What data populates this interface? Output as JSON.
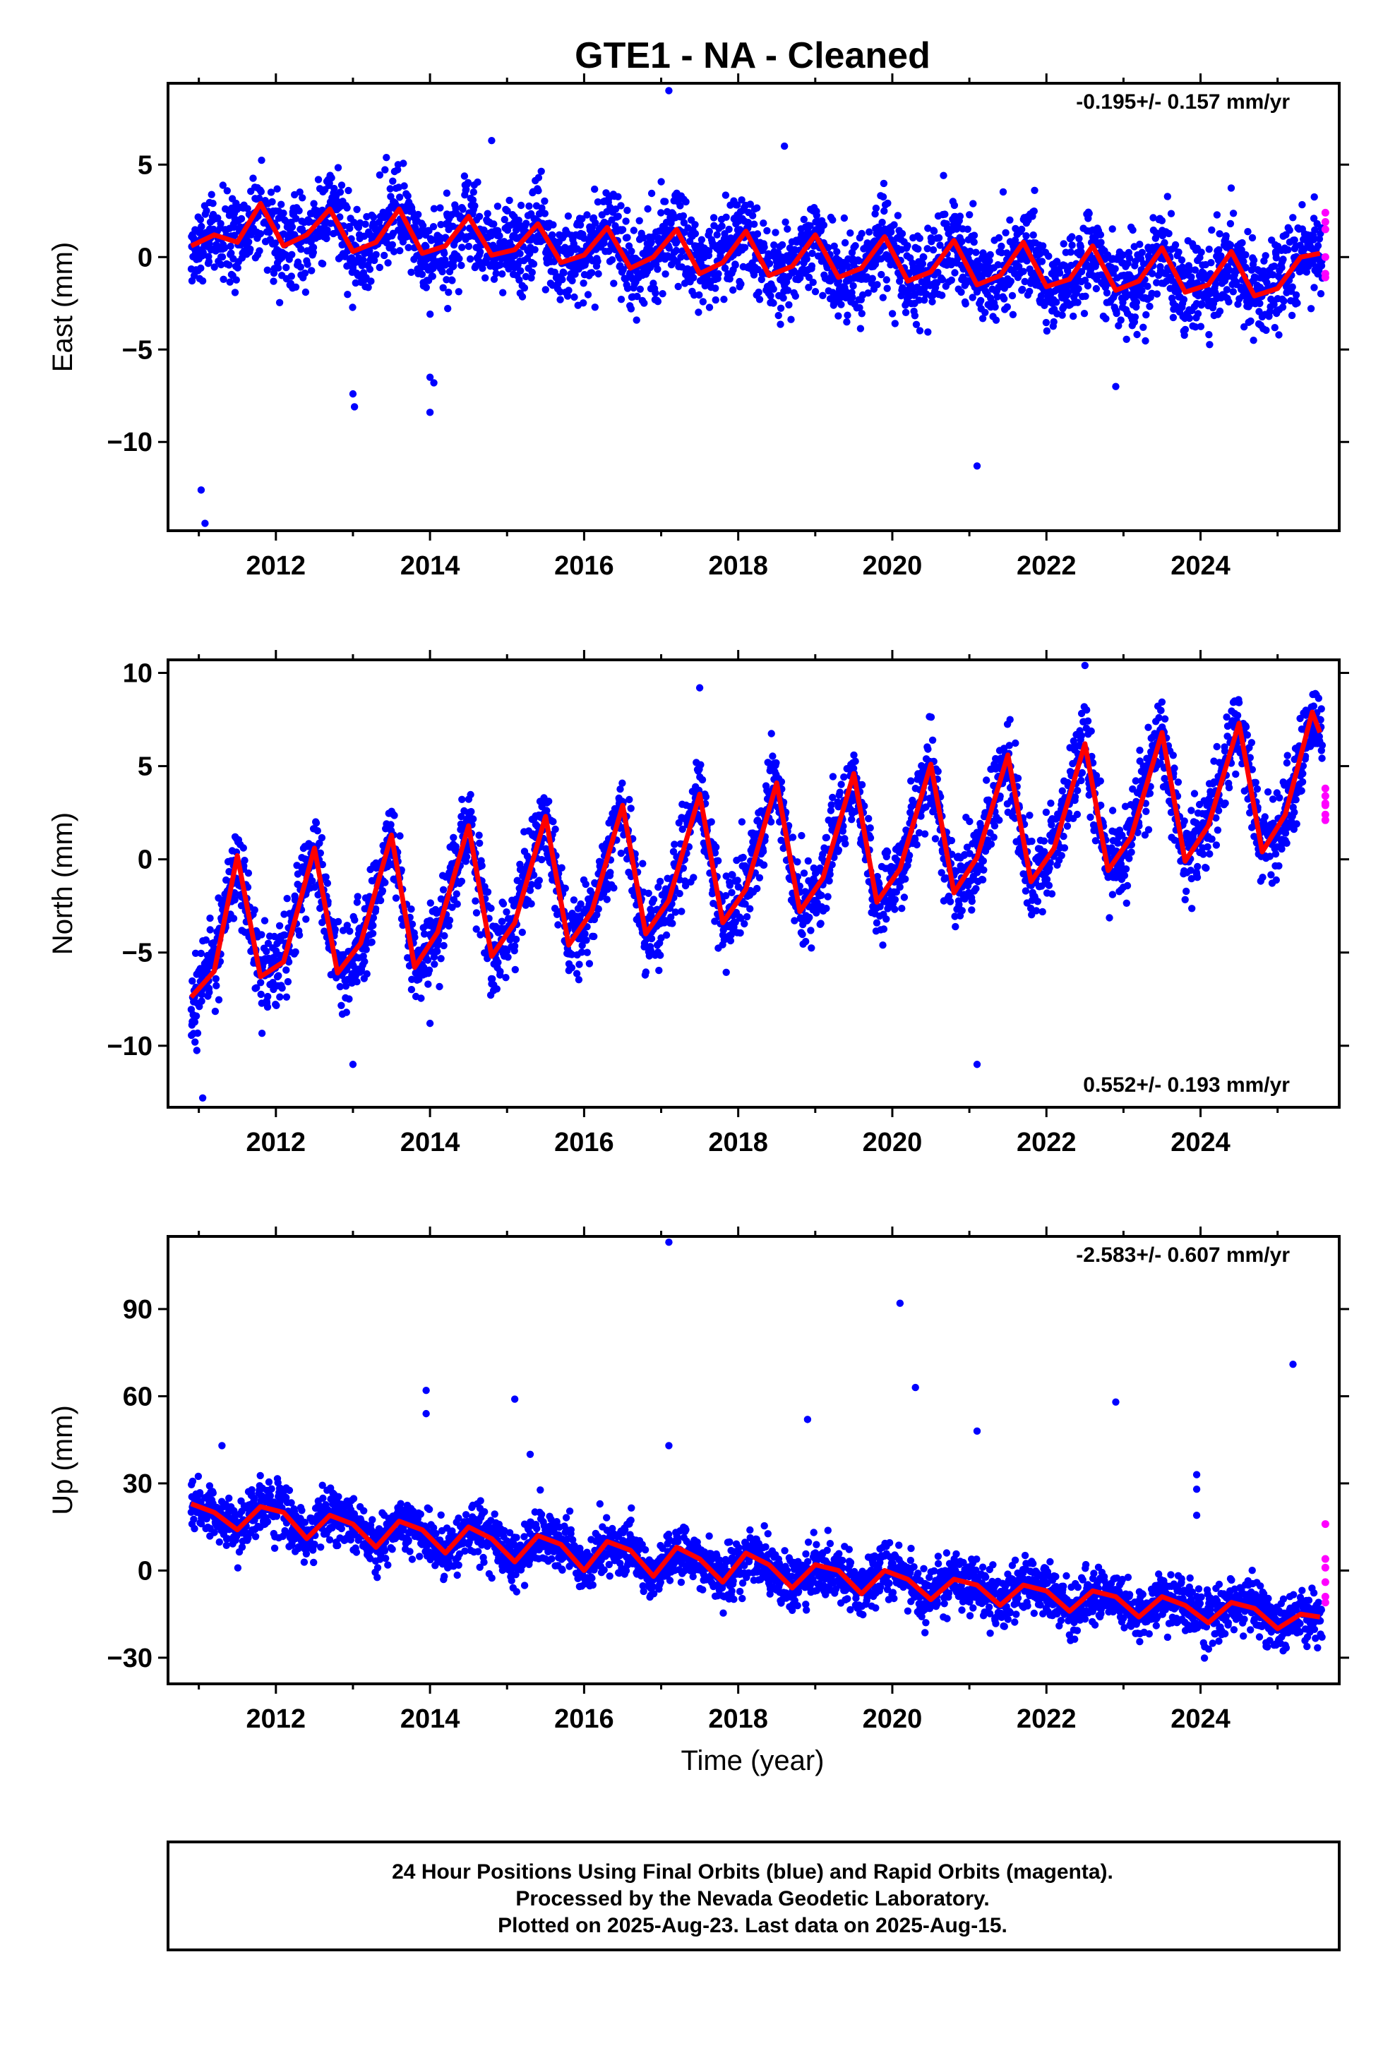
{
  "title": "GTE1  - NA - Cleaned",
  "colors": {
    "final_points": "#0000ff",
    "rapid_points": "#ff00ff",
    "model_line": "#ff0000",
    "frame": "#000000"
  },
  "chart_data": [
    {
      "type": "scatter",
      "panel": "east",
      "ylabel": "East (mm)",
      "xlabel": "",
      "xlim": [
        2010.6,
        2025.8
      ],
      "ylim": [
        -14.8,
        9.4
      ],
      "yticks": [
        5,
        0,
        -5,
        -10
      ],
      "ytick_labels": [
        "5",
        "0",
        "−5",
        "−10"
      ],
      "xticks": [
        2012,
        2014,
        2016,
        2018,
        2020,
        2022,
        2024
      ],
      "xtick_labels": [
        "2012",
        "2014",
        "2016",
        "2018",
        "2020",
        "2022",
        "2024"
      ],
      "rate_label": "-0.195+/- 0.157 mm/yr",
      "rate_position": "top-right",
      "model": {
        "x": [
          2010.9,
          2011.2,
          2011.5,
          2011.8,
          2012.1,
          2012.4,
          2012.7,
          2013.0,
          2013.3,
          2013.6,
          2013.9,
          2014.2,
          2014.5,
          2014.8,
          2015.1,
          2015.4,
          2015.7,
          2016.0,
          2016.3,
          2016.6,
          2016.9,
          2017.2,
          2017.5,
          2017.8,
          2018.1,
          2018.4,
          2018.7,
          2019.0,
          2019.3,
          2019.6,
          2019.9,
          2020.2,
          2020.5,
          2020.8,
          2021.1,
          2021.4,
          2021.7,
          2022.0,
          2022.3,
          2022.6,
          2022.9,
          2023.2,
          2023.5,
          2023.8,
          2024.1,
          2024.4,
          2024.7,
          2025.0,
          2025.3,
          2025.55
        ],
        "y": [
          0.6,
          1.2,
          0.8,
          2.9,
          0.6,
          1.2,
          2.6,
          0.3,
          0.8,
          2.6,
          0.2,
          0.6,
          2.2,
          0.1,
          0.4,
          1.8,
          -0.3,
          0.1,
          1.6,
          -0.6,
          0.0,
          1.5,
          -0.9,
          -0.3,
          1.4,
          -1.0,
          -0.5,
          1.2,
          -1.1,
          -0.6,
          1.1,
          -1.3,
          -0.8,
          0.9,
          -1.5,
          -1.0,
          0.8,
          -1.6,
          -1.2,
          0.6,
          -1.8,
          -1.3,
          0.5,
          -1.9,
          -1.5,
          0.3,
          -2.1,
          -1.7,
          0.0,
          0.2
        ]
      },
      "outliers": {
        "x": [
          2011.03,
          2011.08,
          2013.0,
          2013.02,
          2014.0,
          2014.05,
          2014.0,
          2017.1,
          2021.1,
          2022.9,
          2014.8,
          2018.6
        ],
        "y": [
          -12.6,
          -14.4,
          -7.4,
          -8.1,
          -6.5,
          -6.8,
          -8.4,
          9.0,
          -11.3,
          -7.0,
          6.3,
          6.0
        ]
      },
      "rapid": {
        "x": [
          2025.62,
          2025.62,
          2025.62,
          2025.62,
          2025.62,
          2025.62
        ],
        "y": [
          2.4,
          1.9,
          1.5,
          0.0,
          -0.9,
          -1.1
        ]
      }
    },
    {
      "type": "scatter",
      "panel": "north",
      "ylabel": "North (mm)",
      "xlabel": "",
      "xlim": [
        2010.6,
        2025.8
      ],
      "ylim": [
        -13.3,
        10.7
      ],
      "yticks": [
        10,
        5,
        0,
        -5,
        -10
      ],
      "ytick_labels": [
        "10",
        "5",
        "0",
        "−5",
        "−10"
      ],
      "xticks": [
        2012,
        2014,
        2016,
        2018,
        2020,
        2022,
        2024
      ],
      "xtick_labels": [
        "2012",
        "2014",
        "2016",
        "2018",
        "2020",
        "2022",
        "2024"
      ],
      "rate_label": "0.552+/- 0.193 mm/yr",
      "rate_position": "bottom-right",
      "model": {
        "x": [
          2010.9,
          2011.2,
          2011.5,
          2011.8,
          2012.1,
          2012.5,
          2012.8,
          2013.1,
          2013.5,
          2013.8,
          2014.1,
          2014.5,
          2014.8,
          2015.1,
          2015.5,
          2015.8,
          2016.1,
          2016.5,
          2016.8,
          2017.1,
          2017.5,
          2017.8,
          2018.1,
          2018.5,
          2018.8,
          2019.1,
          2019.5,
          2019.8,
          2020.1,
          2020.5,
          2020.8,
          2021.1,
          2021.5,
          2021.8,
          2022.1,
          2022.5,
          2022.8,
          2023.1,
          2023.5,
          2023.8,
          2024.1,
          2024.5,
          2024.8,
          2025.1,
          2025.45,
          2025.55
        ],
        "y": [
          -7.4,
          -6.0,
          0.2,
          -6.3,
          -5.5,
          0.6,
          -6.1,
          -4.5,
          1.3,
          -5.8,
          -3.9,
          1.8,
          -5.2,
          -3.4,
          2.3,
          -4.6,
          -2.8,
          2.9,
          -4.0,
          -2.2,
          3.5,
          -3.4,
          -1.6,
          4.1,
          -2.8,
          -1.0,
          4.6,
          -2.3,
          -0.5,
          5.1,
          -1.8,
          0.1,
          5.6,
          -1.2,
          0.6,
          6.2,
          -0.6,
          1.2,
          6.8,
          -0.1,
          1.8,
          7.3,
          0.4,
          2.4,
          7.9,
          6.8
        ]
      },
      "outliers": {
        "x": [
          2010.95,
          2011.05,
          2013.0,
          2014.0,
          2021.1,
          2017.5,
          2022.5
        ],
        "y": [
          -9.8,
          -12.8,
          -11.0,
          -8.8,
          -11.0,
          9.2,
          10.4
        ]
      },
      "rapid": {
        "x": [
          2025.62,
          2025.62,
          2025.62,
          2025.62,
          2025.62,
          2025.62
        ],
        "y": [
          3.8,
          3.4,
          3.0,
          2.9,
          2.4,
          2.1
        ]
      }
    },
    {
      "type": "scatter",
      "panel": "up",
      "ylabel": "Up (mm)",
      "xlabel": "Time (year)",
      "xlim": [
        2010.6,
        2025.8
      ],
      "ylim": [
        -39,
        115
      ],
      "yticks": [
        90,
        60,
        30,
        0,
        -30
      ],
      "ytick_labels": [
        "90",
        "60",
        "30",
        "0",
        "−30"
      ],
      "xticks": [
        2012,
        2014,
        2016,
        2018,
        2020,
        2022,
        2024
      ],
      "xtick_labels": [
        "2012",
        "2014",
        "2016",
        "2018",
        "2020",
        "2022",
        "2024"
      ],
      "rate_label": "-2.583+/- 0.607 mm/yr",
      "rate_position": "top-right",
      "model": {
        "x": [
          2010.9,
          2011.2,
          2011.5,
          2011.8,
          2012.1,
          2012.4,
          2012.7,
          2013.0,
          2013.3,
          2013.6,
          2013.9,
          2014.2,
          2014.5,
          2014.8,
          2015.1,
          2015.4,
          2015.7,
          2016.0,
          2016.3,
          2016.6,
          2016.9,
          2017.2,
          2017.5,
          2017.8,
          2018.1,
          2018.4,
          2018.7,
          2019.0,
          2019.3,
          2019.6,
          2019.9,
          2020.2,
          2020.5,
          2020.8,
          2021.1,
          2021.4,
          2021.7,
          2022.0,
          2022.3,
          2022.6,
          2022.9,
          2023.2,
          2023.5,
          2023.8,
          2024.1,
          2024.4,
          2024.7,
          2025.0,
          2025.3,
          2025.55
        ],
        "y": [
          23,
          20,
          14,
          22,
          20,
          11,
          19,
          16,
          8,
          17,
          14,
          6,
          15,
          11,
          3,
          12,
          9,
          0,
          10,
          7,
          -2,
          8,
          4,
          -4,
          6,
          2,
          -6,
          2,
          0,
          -8,
          0,
          -3,
          -10,
          -3,
          -5,
          -12,
          -5,
          -7,
          -14,
          -7,
          -9,
          -16,
          -9,
          -12,
          -18,
          -11,
          -13,
          -20,
          -15,
          -16
        ]
      },
      "outliers": {
        "x": [
          2017.1,
          2020.1,
          2020.3,
          2013.95,
          2013.95,
          2015.1,
          2015.3,
          2018.9,
          2021.1,
          2022.9,
          2025.2,
          2011.3,
          2017.1,
          2023.95,
          2023.95,
          2023.95
        ],
        "y": [
          113,
          92,
          63,
          62,
          54,
          59,
          40,
          52,
          48,
          58,
          71,
          43,
          43,
          33,
          28,
          19
        ]
      },
      "rapid": {
        "x": [
          2025.62,
          2025.62,
          2025.62,
          2025.62,
          2025.62,
          2025.62
        ],
        "y": [
          16,
          4,
          1,
          -4,
          -9,
          -11
        ]
      }
    }
  ],
  "footer": {
    "line1": "24 Hour Positions Using Final Orbits (blue) and Rapid Orbits (magenta).",
    "line2": "Processed by the Nevada Geodetic Laboratory.",
    "line3": "Plotted on 2025-Aug-23. Last data on 2025-Aug-15."
  }
}
